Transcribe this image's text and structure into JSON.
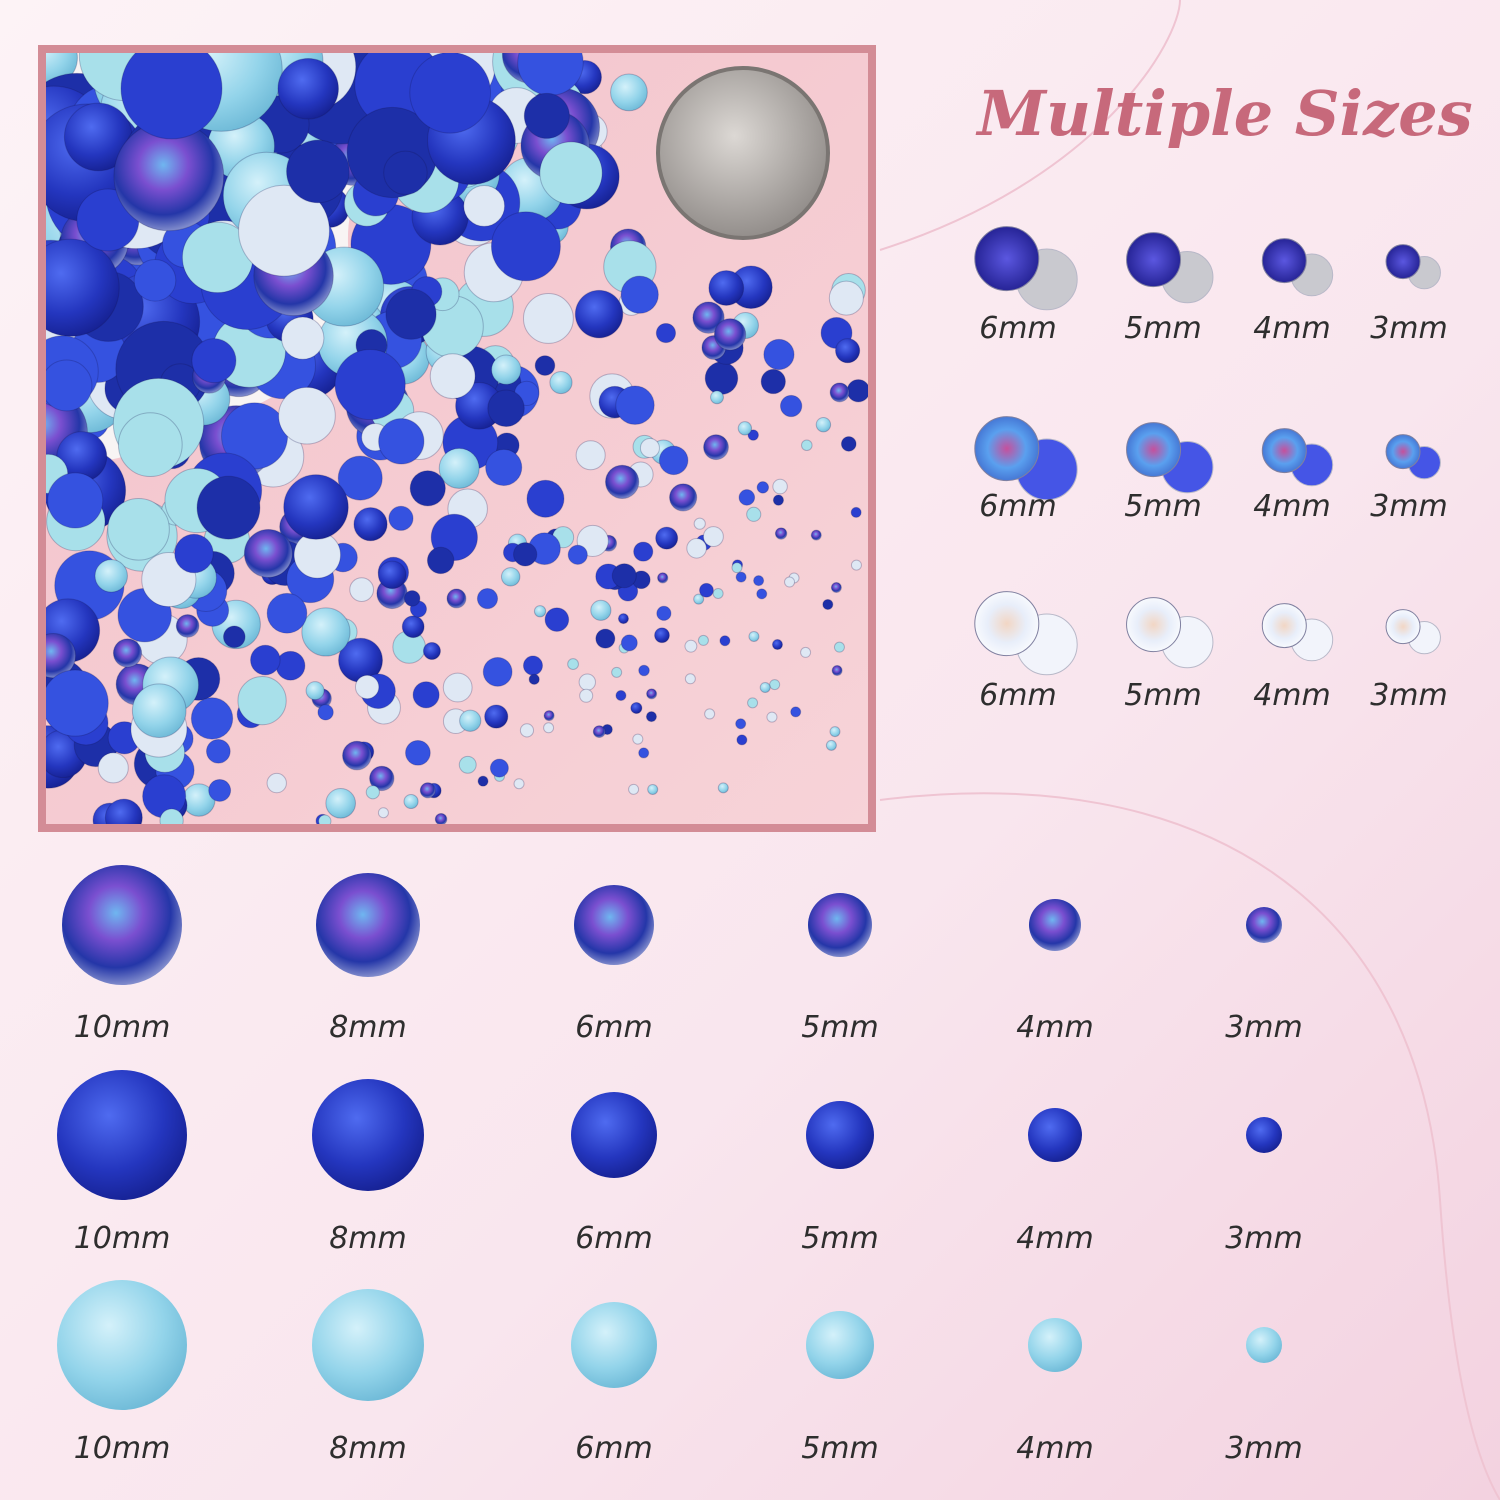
{
  "header": {
    "title": "Multiple Sizes"
  },
  "rhinestones": {
    "rows": [
      [
        "6mm",
        "5mm",
        "4mm",
        "3mm"
      ],
      [
        "6mm",
        "5mm",
        "4mm",
        "3mm"
      ],
      [
        "6mm",
        "5mm",
        "4mm",
        "3mm"
      ]
    ]
  },
  "pearls": {
    "rows": [
      [
        "10mm",
        "8mm",
        "6mm",
        "5mm",
        "4mm",
        "3mm"
      ],
      [
        "10mm",
        "8mm",
        "6mm",
        "5mm",
        "4mm",
        "3mm"
      ],
      [
        "10mm",
        "8mm",
        "6mm",
        "5mm",
        "4mm",
        "3mm"
      ]
    ]
  }
}
